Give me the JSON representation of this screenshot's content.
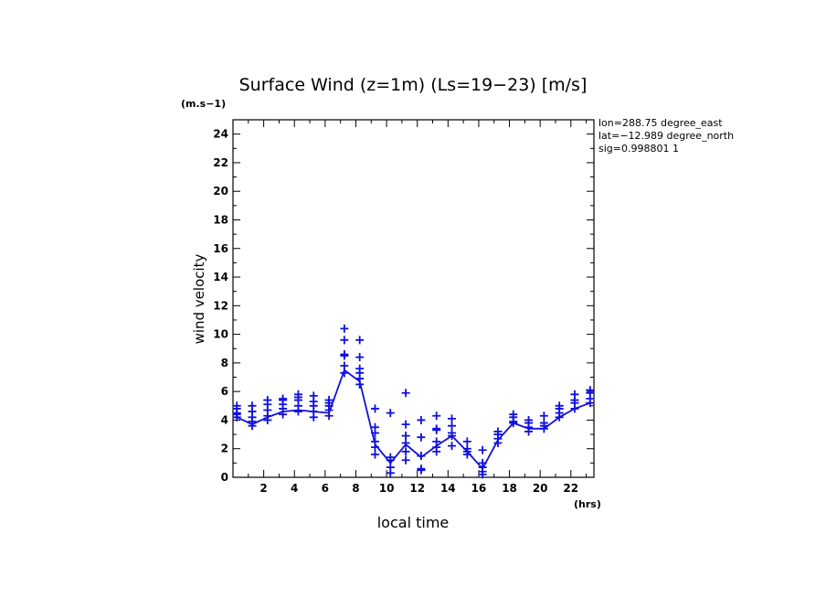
{
  "chart_data": {
    "type": "scatter",
    "title": "Surface Wind (z=1m) (Ls=19−23) [m/s]",
    "xlabel": "local time",
    "ylabel": "wind velocity",
    "x_unit": "(hrs)",
    "y_unit": "(m.s−1)",
    "xlim": [
      0,
      23.5
    ],
    "ylim": [
      0,
      25
    ],
    "xticks": [
      2,
      4,
      6,
      8,
      10,
      12,
      14,
      16,
      18,
      20,
      22
    ],
    "yticks": [
      0,
      2,
      4,
      6,
      8,
      10,
      12,
      14,
      16,
      18,
      20,
      22,
      24
    ],
    "grid": false,
    "color": "#1010e0",
    "info": [
      "lon=288.75 degree_east",
      "lat=−12.989 degree_north",
      "sig=0.998801 1"
    ],
    "mean_line": {
      "x": [
        0.25,
        1.25,
        2.25,
        3.25,
        4.25,
        5.25,
        6.25,
        7.25,
        8.25,
        9.25,
        10.25,
        11.25,
        12.25,
        13.25,
        14.25,
        15.25,
        16.25,
        17.25,
        18.25,
        19.25,
        20.25,
        21.25,
        22.25,
        23.25
      ],
      "y": [
        4.2,
        3.7,
        4.2,
        4.6,
        4.7,
        4.6,
        4.5,
        7.5,
        6.7,
        2.3,
        1.0,
        2.3,
        1.4,
        2.2,
        2.9,
        1.8,
        0.6,
        2.6,
        3.8,
        3.4,
        3.4,
        4.2,
        4.8,
        5.2
      ]
    },
    "points": [
      {
        "x": 0.25,
        "y": [
          4.2,
          4.5,
          4.8,
          5.0,
          4.4
        ]
      },
      {
        "x": 1.25,
        "y": [
          3.6,
          3.9,
          4.2,
          4.6,
          5.0
        ]
      },
      {
        "x": 2.25,
        "y": [
          4.0,
          4.3,
          4.7,
          5.1,
          5.4
        ]
      },
      {
        "x": 3.25,
        "y": [
          4.4,
          4.8,
          5.1,
          5.4,
          5.5
        ]
      },
      {
        "x": 4.25,
        "y": [
          4.6,
          5.0,
          5.4,
          5.6,
          5.8
        ]
      },
      {
        "x": 5.25,
        "y": [
          4.2,
          4.6,
          5.0,
          5.3,
          5.7
        ]
      },
      {
        "x": 6.25,
        "y": [
          4.3,
          4.7,
          5.0,
          5.2,
          5.4
        ]
      },
      {
        "x": 7.25,
        "y": [
          7.3,
          7.8,
          8.5,
          8.6,
          9.6,
          10.4
        ]
      },
      {
        "x": 8.25,
        "y": [
          6.5,
          6.9,
          7.3,
          7.6,
          8.4,
          9.6
        ]
      },
      {
        "x": 9.25,
        "y": [
          1.6,
          2.1,
          2.5,
          3.1,
          3.5,
          4.8
        ]
      },
      {
        "x": 10.25,
        "y": [
          0.3,
          0.7,
          1.2,
          1.4,
          4.5
        ]
      },
      {
        "x": 11.25,
        "y": [
          1.2,
          1.8,
          2.4,
          2.9,
          3.7,
          5.9
        ]
      },
      {
        "x": 12.25,
        "y": [
          0.5,
          0.6,
          1.5,
          2.8,
          4.0
        ]
      },
      {
        "x": 13.25,
        "y": [
          1.8,
          2.1,
          2.5,
          3.3,
          3.4,
          4.3
        ]
      },
      {
        "x": 14.25,
        "y": [
          2.2,
          2.9,
          3.1,
          3.6,
          4.1
        ]
      },
      {
        "x": 15.25,
        "y": [
          1.6,
          1.8,
          2.0,
          2.5
        ]
      },
      {
        "x": 16.25,
        "y": [
          0.2,
          0.4,
          0.7,
          1.0,
          1.9
        ]
      },
      {
        "x": 17.25,
        "y": [
          2.4,
          2.7,
          3.0,
          3.2
        ]
      },
      {
        "x": 18.25,
        "y": [
          3.8,
          3.9,
          4.2,
          4.4
        ]
      },
      {
        "x": 19.25,
        "y": [
          3.2,
          3.5,
          3.8,
          4.0
        ]
      },
      {
        "x": 20.25,
        "y": [
          3.4,
          3.6,
          3.8,
          4.3
        ]
      },
      {
        "x": 21.25,
        "y": [
          4.2,
          4.5,
          4.8,
          5.0
        ]
      },
      {
        "x": 22.25,
        "y": [
          4.8,
          5.2,
          5.4,
          5.8
        ]
      },
      {
        "x": 23.25,
        "y": [
          5.2,
          5.5,
          5.9,
          6.1
        ]
      }
    ]
  }
}
